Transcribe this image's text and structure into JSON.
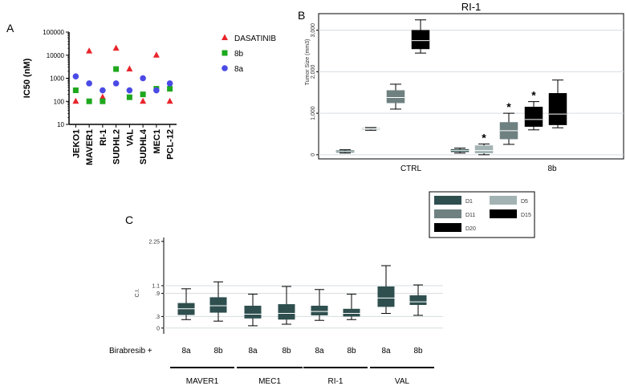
{
  "chart_data": [
    {
      "panel": "A",
      "type": "scatter",
      "ylabel": "IC50 (nM)",
      "yscale": "log",
      "ylim": [
        10,
        100000
      ],
      "yticks": [
        "10",
        "100",
        "1000",
        "10000",
        "100000"
      ],
      "categories": [
        "JEKO1",
        "MAVER1",
        "RI-1",
        "SUDHL2",
        "VAL",
        "SUDHL4",
        "MEC1",
        "PCL-12"
      ],
      "series": [
        {
          "name": "DASATINIB",
          "color": "#e8242b",
          "marker": "triangle",
          "values": [
            100,
            15000,
            150,
            20000,
            2500,
            100,
            10000,
            100
          ]
        },
        {
          "name": "8b",
          "color": "#1ea81e",
          "marker": "square",
          "values": [
            300,
            100,
            100,
            2500,
            150,
            200,
            350,
            350
          ]
        },
        {
          "name": "8a",
          "color": "#4a4ae6",
          "marker": "circle",
          "values": [
            1200,
            600,
            300,
            600,
            300,
            1000,
            300,
            600
          ]
        }
      ]
    },
    {
      "panel": "B",
      "type": "box",
      "title": "RI-1",
      "ylabel": "Tumor Size (mm3)",
      "ylim": [
        -100,
        3400
      ],
      "yticks": [
        "0",
        "1,000",
        "2,000",
        "3,000"
      ],
      "grid": true,
      "groups": [
        "CTRL",
        "8b"
      ],
      "series": [
        {
          "name": "D1",
          "color": "#2f4f4f"
        },
        {
          "name": "D5",
          "color": "#a3b3b3"
        },
        {
          "name": "D11",
          "color": "#6f8080"
        },
        {
          "name": "D15",
          "color": "#000000"
        },
        {
          "name": "D20",
          "color": "#000000"
        }
      ],
      "boxes": [
        {
          "group": "CTRL",
          "series": "D1",
          "whislo": 40,
          "q1": 60,
          "med": 80,
          "q3": 100,
          "whishi": 120,
          "star": ""
        },
        {
          "group": "CTRL",
          "series": "D5",
          "whislo": 590,
          "q1": 610,
          "med": 625,
          "q3": 640,
          "whishi": 655,
          "star": ""
        },
        {
          "group": "CTRL",
          "series": "D11",
          "whislo": 1100,
          "q1": 1250,
          "med": 1380,
          "q3": 1550,
          "whishi": 1700,
          "star": ""
        },
        {
          "group": "CTRL",
          "series": "D20",
          "whislo": 2450,
          "q1": 2550,
          "med": 2750,
          "q3": 3000,
          "whishi": 3250,
          "star": ""
        },
        {
          "group": "8b",
          "series": "D1",
          "whislo": 40,
          "q1": 70,
          "med": 100,
          "q3": 130,
          "whishi": 160,
          "star": ""
        },
        {
          "group": "8b",
          "series": "D5",
          "whislo": 0,
          "q1": 40,
          "med": 100,
          "q3": 220,
          "whishi": 260,
          "star": "*"
        },
        {
          "group": "8b",
          "series": "D11",
          "whislo": 250,
          "q1": 380,
          "med": 580,
          "q3": 780,
          "whishi": 1000,
          "star": "*"
        },
        {
          "group": "8b",
          "series": "D15",
          "whislo": 600,
          "q1": 680,
          "med": 850,
          "q3": 1150,
          "whishi": 1280,
          "star": "*"
        },
        {
          "group": "8b",
          "series": "D20",
          "whislo": 650,
          "q1": 720,
          "med": 980,
          "q3": 1480,
          "whishi": 1800,
          "star": ""
        }
      ]
    },
    {
      "panel": "C",
      "type": "box",
      "ylabel": "C.I.",
      "ylim": [
        -0.15,
        2.35
      ],
      "yticks": [
        "0",
        ".3",
        ".9",
        "1.1",
        "2.25"
      ],
      "grid": true,
      "row_label": "Birabresib +",
      "cell_lines": [
        "MAVER1",
        "MEC1",
        "RI-1",
        "VAL"
      ],
      "color": "#2f4f4f",
      "boxes": [
        {
          "cell_line": "MAVER1",
          "drug": "8a",
          "whislo": 0.22,
          "q1": 0.34,
          "med": 0.5,
          "q3": 0.65,
          "whishi": 1.02
        },
        {
          "cell_line": "MAVER1",
          "drug": "8b",
          "whislo": 0.18,
          "q1": 0.4,
          "med": 0.58,
          "q3": 0.8,
          "whishi": 1.2
        },
        {
          "cell_line": "MEC1",
          "drug": "8a",
          "whislo": 0.06,
          "q1": 0.25,
          "med": 0.36,
          "q3": 0.58,
          "whishi": 0.88
        },
        {
          "cell_line": "MEC1",
          "drug": "8b",
          "whislo": 0.1,
          "q1": 0.22,
          "med": 0.38,
          "q3": 0.62,
          "whishi": 1.08
        },
        {
          "cell_line": "RI-1",
          "drug": "8a",
          "whislo": 0.2,
          "q1": 0.33,
          "med": 0.43,
          "q3": 0.58,
          "whishi": 1.0
        },
        {
          "cell_line": "RI-1",
          "drug": "8b",
          "whislo": 0.22,
          "q1": 0.3,
          "med": 0.38,
          "q3": 0.5,
          "whishi": 0.88
        },
        {
          "cell_line": "VAL",
          "drug": "8a",
          "whislo": 0.38,
          "q1": 0.55,
          "med": 0.78,
          "q3": 1.08,
          "whishi": 1.62
        },
        {
          "cell_line": "VAL",
          "drug": "8b",
          "whislo": 0.33,
          "q1": 0.6,
          "med": 0.68,
          "q3": 0.85,
          "whishi": 1.12
        }
      ]
    }
  ],
  "panel_labels": {
    "a": "A",
    "b": "B",
    "c": "C"
  }
}
